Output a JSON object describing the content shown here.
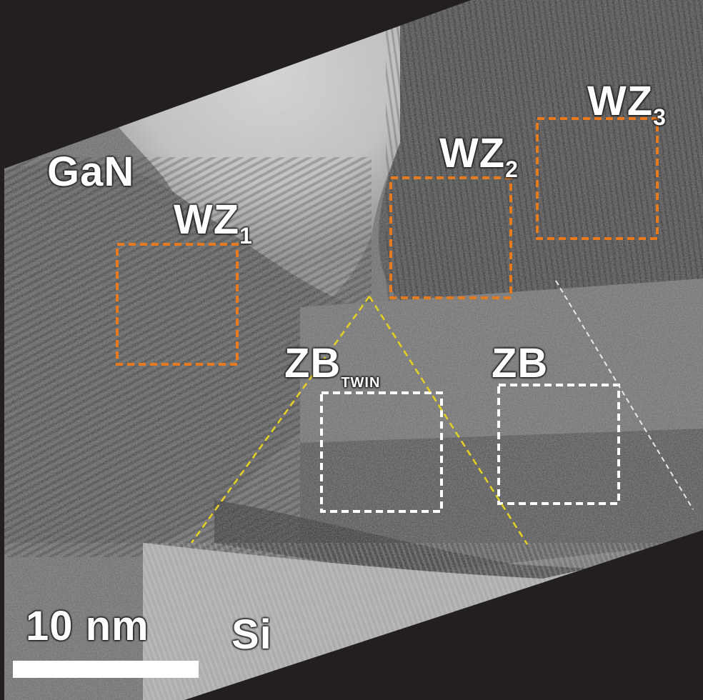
{
  "image": {
    "material_label": "GaN",
    "substrate_label": "Si",
    "regions": [
      {
        "id": "wz1",
        "main": "WZ",
        "sub": "1",
        "color": "#e87a1e"
      },
      {
        "id": "wz2",
        "main": "WZ",
        "sub": "2",
        "color": "#e87a1e"
      },
      {
        "id": "wz3",
        "main": "WZ",
        "sub": "3",
        "color": "#e87a1e"
      },
      {
        "id": "zbtwin",
        "main": "ZB",
        "sub": "TWIN",
        "color": "#ffffff"
      },
      {
        "id": "zb",
        "main": "ZB",
        "sub": "",
        "color": "#ffffff"
      }
    ],
    "boundary_line_colors": {
      "twin": "#e6d21f",
      "zb": "#e8e8e8"
    },
    "scale_bar": {
      "label": "10 nm",
      "color": "#ffffff"
    }
  }
}
